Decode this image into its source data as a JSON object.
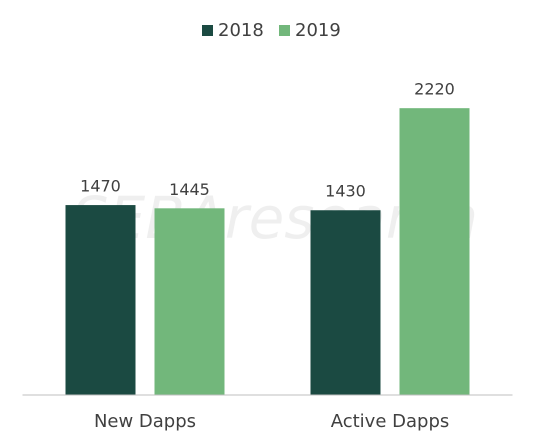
{
  "chart_data": {
    "type": "bar",
    "categories": [
      "New Dapps",
      "Active Dapps"
    ],
    "series": [
      {
        "name": "2018",
        "color": "#1b4a42",
        "values": [
          1470,
          1430
        ]
      },
      {
        "name": "2019",
        "color": "#72b77b",
        "values": [
          1445,
          2220
        ]
      }
    ],
    "ylim": [
      0,
      2500
    ],
    "legend": "top",
    "watermark": "SEBAresearch"
  }
}
